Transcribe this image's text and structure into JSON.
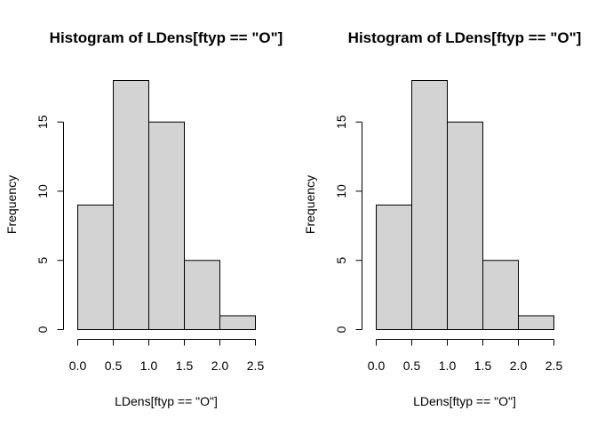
{
  "chart_data": [
    {
      "type": "bar",
      "title": "Histogram of LDens[ftyp == \"O\"]",
      "xlabel": "LDens[ftyp == \"O\"]",
      "ylabel": "Frequency",
      "bins": [
        [
          0.0,
          0.5
        ],
        [
          0.5,
          1.0
        ],
        [
          1.0,
          1.5
        ],
        [
          1.5,
          2.0
        ],
        [
          2.0,
          2.5
        ]
      ],
      "values": [
        9,
        18,
        15,
        5,
        1
      ],
      "xlim": [
        0,
        2.5
      ],
      "ylim": [
        0,
        18
      ],
      "x_ticks": [
        "0.0",
        "0.5",
        "1.0",
        "1.5",
        "2.0",
        "2.5"
      ],
      "y_ticks": [
        "0",
        "5",
        "10",
        "15"
      ],
      "bar_color": "#d3d3d3",
      "grid": false
    },
    {
      "type": "bar",
      "title": "Histogram of LDens[ftyp == \"O\"]",
      "xlabel": "LDens[ftyp == \"O\"]",
      "ylabel": "Frequency",
      "bins": [
        [
          0.0,
          0.5
        ],
        [
          0.5,
          1.0
        ],
        [
          1.0,
          1.5
        ],
        [
          1.5,
          2.0
        ],
        [
          2.0,
          2.5
        ]
      ],
      "values": [
        9,
        18,
        15,
        5,
        1
      ],
      "xlim": [
        0,
        2.5
      ],
      "ylim": [
        0,
        18
      ],
      "x_ticks": [
        "0.0",
        "0.5",
        "1.0",
        "1.5",
        "2.0",
        "2.5"
      ],
      "y_ticks": [
        "0",
        "5",
        "10",
        "15"
      ],
      "bar_color": "#d3d3d3",
      "grid": false
    }
  ]
}
